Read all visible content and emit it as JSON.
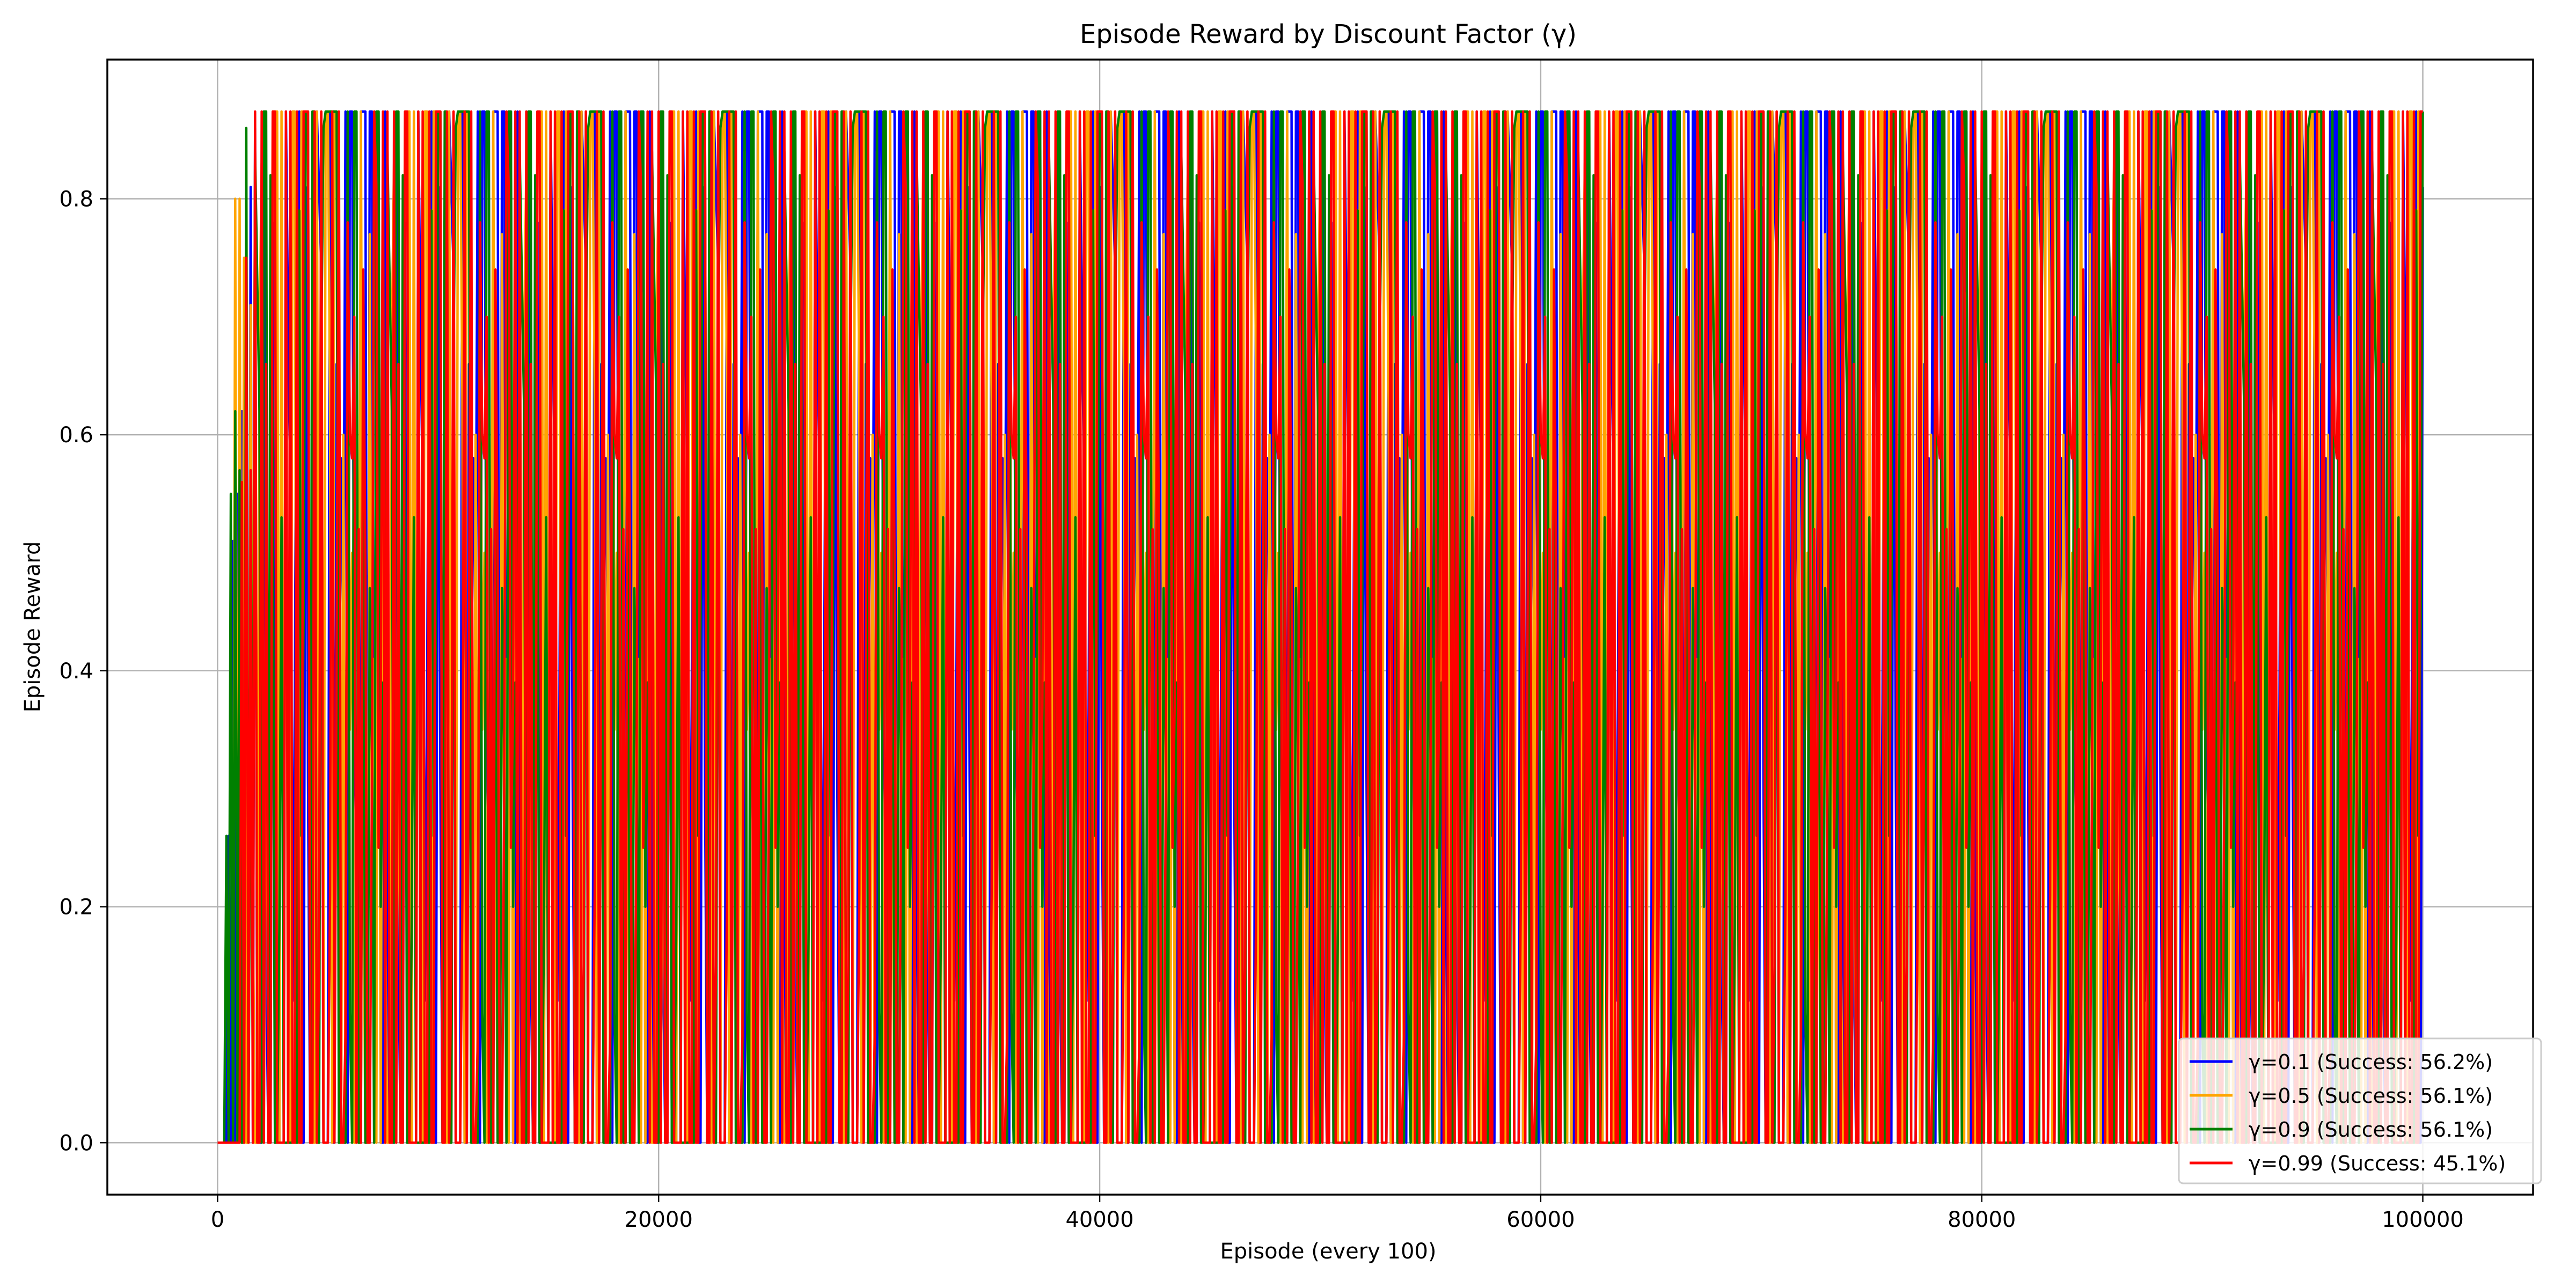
{
  "chart_data": {
    "type": "line",
    "title": "Episode Reward by Discount Factor (γ)",
    "xlabel": "Episode (every 100)",
    "ylabel": "Episode Reward",
    "xlim": [
      -5000,
      105000
    ],
    "ylim": [
      -0.044,
      0.918
    ],
    "xticks": [
      0,
      20000,
      40000,
      60000,
      80000,
      100000
    ],
    "xtick_labels": [
      "0",
      "20000",
      "40000",
      "60000",
      "80000",
      "100000"
    ],
    "yticks": [
      0.0,
      0.2,
      0.4,
      0.6,
      0.8
    ],
    "ytick_labels": [
      "0.0",
      "0.2",
      "0.4",
      "0.6",
      "0.8"
    ],
    "grid": true,
    "legend_position": "lower-right",
    "x_start": 0,
    "x_step": 100,
    "series": [
      {
        "name": "γ=0.1 (Success: 56.2%)",
        "color": "#0000ff",
        "pattern": [
          0.0,
          0.874,
          0.0,
          0.52,
          0.874,
          0.0,
          0.81,
          0.0,
          0.35,
          0.874,
          0.0,
          0.0,
          0.66,
          0.874,
          0.0,
          0.24,
          0.81,
          0.0,
          0.874,
          0.45,
          0.0,
          0.874,
          0.0,
          0.74,
          0.0,
          0.874,
          0.58,
          0.0,
          0.16,
          0.874,
          0.0,
          0.874,
          0.0,
          0.42,
          0.81,
          0.0,
          0.874,
          0.0,
          0.69,
          0.0,
          0.874,
          0.31,
          0.0,
          0.874,
          0.0,
          0.55,
          0.874,
          0.0,
          0.0,
          0.78,
          0.0,
          0.874,
          0.12,
          0.0,
          0.874,
          0.61,
          0.0,
          0.874,
          0.0,
          0.37
        ],
        "values": [
          0.0,
          0.0,
          0.0,
          0.0,
          0.0,
          0.26,
          0.0,
          0.51,
          0.0,
          0.55,
          0.0,
          0.62,
          0.0,
          0.57,
          0.0,
          0.81,
          0.0,
          0.86
        ]
      },
      {
        "name": "γ=0.5 (Success: 56.1%)",
        "color": "#ffa500",
        "pattern": [
          0.874,
          0.0,
          0.81,
          0.0,
          0.6,
          0.874,
          0.0,
          0.28,
          0.874,
          0.0,
          0.71,
          0.0,
          0.874,
          0.46,
          0.0,
          0.874,
          0.0,
          0.19,
          0.84,
          0.0,
          0.874,
          0.0,
          0.63,
          0.874,
          0.0,
          0.35,
          0.0,
          0.874,
          0.77,
          0.0,
          0.874,
          0.0,
          0.5,
          0.0,
          0.874,
          0.22,
          0.874,
          0.0,
          0.68,
          0.0,
          0.874,
          0.0,
          0.41,
          0.874,
          0.0,
          0.83,
          0.0,
          0.14,
          0.874,
          0.0,
          0.57,
          0.874,
          0.0,
          0.3,
          0.874,
          0.0,
          0.72,
          0.0,
          0.874,
          0.48
        ],
        "values": [
          0.0,
          0.0,
          0.0,
          0.0,
          0.0,
          0.0,
          0.0,
          0.0,
          0.8,
          0.0,
          0.8,
          0.0,
          0.75,
          0.0
        ]
      },
      {
        "name": "γ=0.9 (Success: 56.1%)",
        "color": "#008000",
        "pattern": [
          0.0,
          0.874,
          0.0,
          0.65,
          0.874,
          0.0,
          0.39,
          0.0,
          0.874,
          0.82,
          0.0,
          0.874,
          0.0,
          0.27,
          0.874,
          0.0,
          0.59,
          0.0,
          0.874,
          0.0,
          0.84,
          0.11,
          0.874,
          0.0,
          0.47,
          0.874,
          0.0,
          0.73,
          0.0,
          0.874,
          0.0,
          0.33,
          0.874,
          0.0,
          0.62,
          0.874,
          0.0,
          0.18,
          0.0,
          0.874,
          0.79,
          0.0,
          0.874,
          0.0,
          0.53,
          0.874,
          0.0,
          0.26,
          0.874,
          0.0,
          0.67,
          0.0,
          0.874,
          0.0,
          0.44,
          0.874,
          0.0,
          0.86,
          0.0,
          0.2
        ],
        "values": [
          0.0,
          0.0,
          0.0,
          0.0,
          0.26,
          0.0,
          0.55,
          0.0,
          0.62,
          0.0,
          0.57,
          0.0,
          0.0,
          0.86,
          0.0
        ]
      },
      {
        "name": "γ=0.99 (Success: 45.1%)",
        "color": "#ff0000",
        "pattern": [
          0.874,
          0.0,
          0.0,
          0.58,
          0.874,
          0.0,
          0.31,
          0.0,
          0.874,
          0.0,
          0.7,
          0.0,
          0.0,
          0.874,
          0.43,
          0.0,
          0.874,
          0.0,
          0.15,
          0.0,
          0.81,
          0.874,
          0.0,
          0.0,
          0.52,
          0.874,
          0.0,
          0.25,
          0.0,
          0.874,
          0.66,
          0.0,
          0.0,
          0.874,
          0.37,
          0.0,
          0.874,
          0.0,
          0.74,
          0.0,
          0.0,
          0.874,
          0.09,
          0.874,
          0.0,
          0.49,
          0.0,
          0.874,
          0.0,
          0.78,
          0.0,
          0.874,
          0.0,
          0.21,
          0.0,
          0.874,
          0.6,
          0.0,
          0.874,
          0.0
        ],
        "values": [
          0.0,
          0.0,
          0.0,
          0.0,
          0.0,
          0.0,
          0.0,
          0.0,
          0.0,
          0.0,
          0.0,
          0.56,
          0.0,
          0.75,
          0.0,
          0.57,
          0.0,
          0.874,
          0.0
        ]
      }
    ]
  }
}
